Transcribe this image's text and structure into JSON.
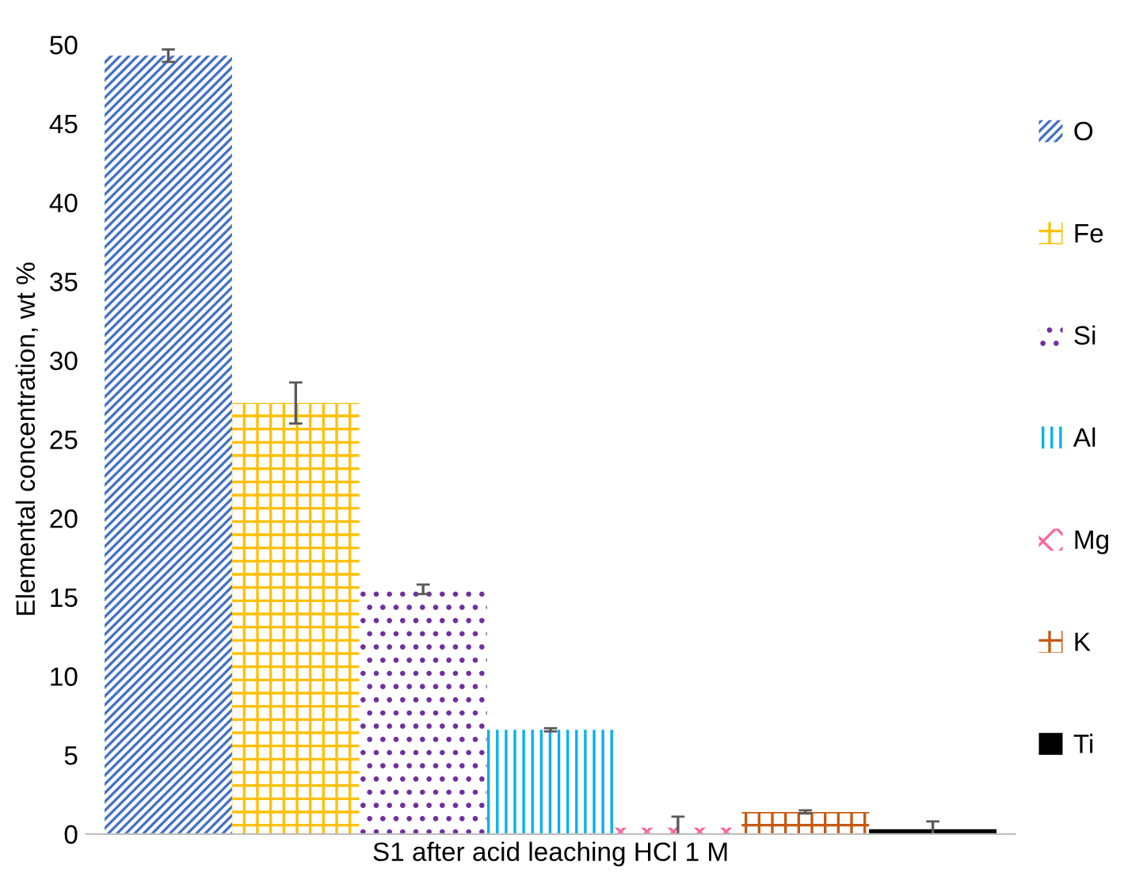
{
  "chart_data": {
    "type": "bar",
    "ylabel": "Elemental concentration, wt %",
    "categories": [
      "S1 after acid leaching HCl 1 M"
    ],
    "series": [
      {
        "name": "O",
        "color": "#4472c4",
        "values": [
          49.3
        ],
        "errors": [
          0.4
        ]
      },
      {
        "name": "Fe",
        "color": "#ffc000",
        "values": [
          27.3
        ],
        "errors": [
          1.3
        ]
      },
      {
        "name": "Si",
        "color": "#7030a0",
        "values": [
          15.5
        ],
        "errors": [
          0.3
        ]
      },
      {
        "name": "Al",
        "color": "#00b0f0",
        "values": [
          6.6
        ],
        "errors": [
          0.1
        ]
      },
      {
        "name": "Mg",
        "color": "#ff6699",
        "values": [
          0.4
        ],
        "errors": [
          0.7
        ]
      },
      {
        "name": "K",
        "color": "#c55a11",
        "values": [
          1.4
        ],
        "errors": [
          0.1
        ]
      },
      {
        "name": "Ti",
        "color": "#000000",
        "values": [
          0.3
        ],
        "errors": [
          0.5
        ]
      }
    ],
    "ylim": [
      0,
      50
    ],
    "yticks": [
      0,
      5,
      10,
      15,
      20,
      25,
      30,
      35,
      40,
      45,
      50
    ],
    "grid": false,
    "legend": "right"
  }
}
